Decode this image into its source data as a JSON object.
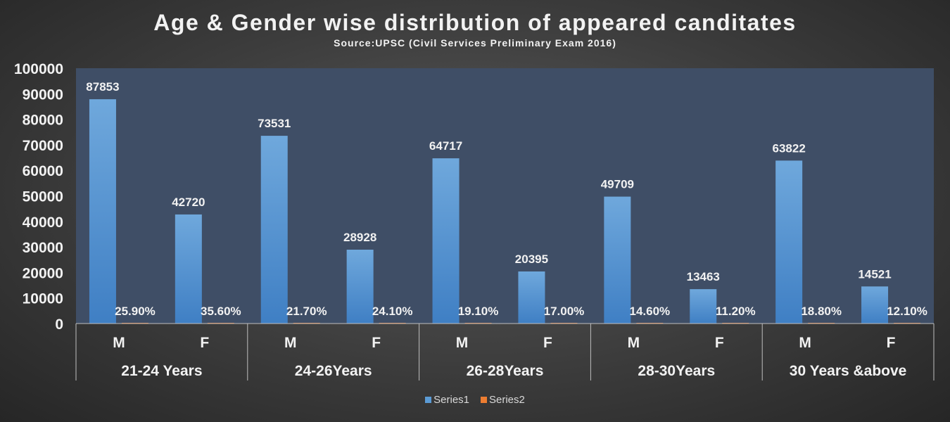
{
  "chart_data": {
    "type": "bar",
    "title": "Age & Gender wise distribution of appeared canditates",
    "subtitle": "Source:UPSC (Civil Services Preliminary Exam 2016)",
    "groups": [
      "21-24 Years",
      "24-26Years",
      "26-28Years",
      "28-30Years",
      "30 Years &above"
    ],
    "categories": [
      "M",
      "F",
      "M",
      "F",
      "M",
      "F",
      "M",
      "F",
      "M",
      "F"
    ],
    "ylim": [
      0,
      100000
    ],
    "yticks": [
      "0",
      "10000",
      "20000",
      "30000",
      "40000",
      "50000",
      "60000",
      "70000",
      "80000",
      "90000",
      "100000"
    ],
    "series": [
      {
        "name": "Series1",
        "color": "#5b9bd5",
        "values": [
          87853,
          42720,
          73531,
          28928,
          64717,
          20395,
          49709,
          13463,
          63822,
          14521
        ],
        "labels": [
          "87853",
          "42720",
          "73531",
          "28928",
          "64717",
          "20395",
          "49709",
          "13463",
          "63822",
          "14521"
        ]
      },
      {
        "name": "Series2",
        "color": "#ed7d31",
        "values": [
          0.259,
          0.356,
          0.217,
          0.241,
          0.191,
          0.17,
          0.146,
          0.112,
          0.188,
          0.121
        ],
        "labels": [
          "25.90%",
          "35.60%",
          "21.70%",
          "24.10%",
          "19.10%",
          "17.00%",
          "14.60%",
          "11.20%",
          "18.80%",
          "12.10%"
        ]
      }
    ],
    "legend": "bottom",
    "grid": false
  }
}
